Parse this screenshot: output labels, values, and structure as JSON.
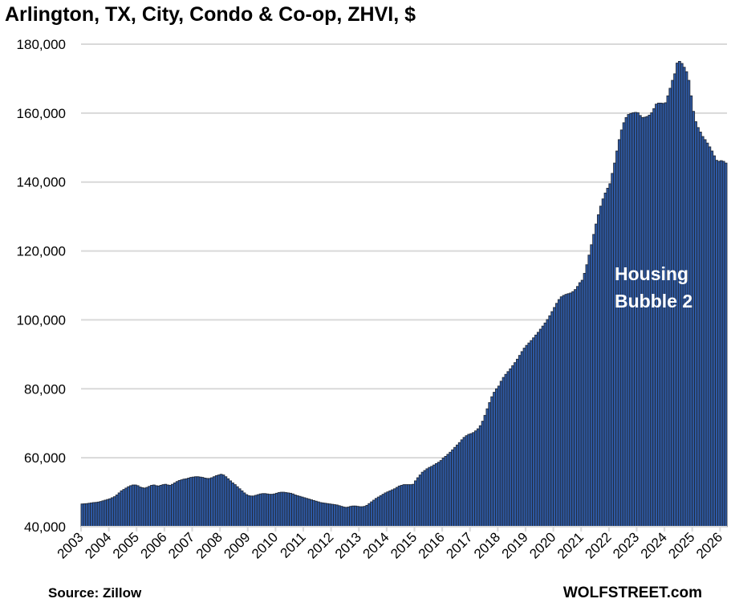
{
  "chart_data": {
    "type": "bar",
    "title": "Arlington, TX, City, Condo & Co-op, ZHVI, $",
    "xlabel": "",
    "ylabel": "",
    "start": "2003-01",
    "frequency": "monthly",
    "ylim": [
      40000,
      180000
    ],
    "yticks": [
      40000,
      60000,
      80000,
      100000,
      120000,
      140000,
      160000,
      180000
    ],
    "ytick_labels": [
      "40,000",
      "60,000",
      "80,000",
      "100,000",
      "120,000",
      "140,000",
      "160,000",
      "180,000"
    ],
    "xtick_labels": [
      "2003",
      "2004",
      "2005",
      "2006",
      "2007",
      "2008",
      "2009",
      "2010",
      "2011",
      "2012",
      "2013",
      "2014",
      "2015",
      "2016",
      "2017",
      "2018",
      "2019",
      "2020",
      "2021",
      "2022",
      "2023",
      "2024",
      "2025",
      "2026"
    ],
    "grid": "horizontal",
    "legend": "none",
    "annotation": [
      "Housing",
      "Bubble 2"
    ],
    "colors": {
      "bar_fill": "#2e5aa6",
      "bar_edge": "#222a38",
      "grid": "#d9d9d9",
      "annotation": "#ffffff"
    },
    "values": [
      46600,
      46650,
      46700,
      46800,
      46900,
      47000,
      47050,
      47150,
      47300,
      47500,
      47700,
      47900,
      48100,
      48400,
      48700,
      49200,
      49800,
      50400,
      50800,
      51200,
      51600,
      51900,
      52100,
      52100,
      51900,
      51500,
      51300,
      51200,
      51400,
      51700,
      52000,
      52100,
      51900,
      51800,
      52000,
      52200,
      52300,
      52100,
      52000,
      52300,
      52700,
      53100,
      53400,
      53600,
      53800,
      53900,
      54100,
      54300,
      54400,
      54500,
      54500,
      54400,
      54300,
      54100,
      54000,
      54000,
      54200,
      54500,
      54800,
      55000,
      55200,
      55000,
      54500,
      53900,
      53300,
      52700,
      52200,
      51600,
      51000,
      50400,
      49800,
      49300,
      49000,
      48900,
      48900,
      49100,
      49300,
      49500,
      49600,
      49600,
      49500,
      49400,
      49400,
      49500,
      49700,
      49900,
      50000,
      50000,
      49900,
      49800,
      49700,
      49500,
      49200,
      49000,
      48800,
      48600,
      48400,
      48200,
      48000,
      47800,
      47600,
      47400,
      47200,
      47000,
      46900,
      46800,
      46700,
      46600,
      46500,
      46400,
      46300,
      46100,
      45900,
      45700,
      45600,
      45700,
      45900,
      46000,
      46000,
      45900,
      45800,
      45800,
      45900,
      46200,
      46700,
      47200,
      47700,
      48200,
      48600,
      49000,
      49400,
      49800,
      50100,
      50400,
      50700,
      51000,
      51400,
      51800,
      52000,
      52200,
      52200,
      52200,
      52200,
      52300,
      53300,
      54200,
      55000,
      55800,
      56300,
      56800,
      57200,
      57500,
      57900,
      58300,
      58700,
      59200,
      59900,
      60400,
      61000,
      61600,
      62300,
      63000,
      63700,
      64400,
      65200,
      65900,
      66400,
      66800,
      67000,
      67300,
      67800,
      68400,
      69300,
      70600,
      72300,
      74200,
      76000,
      77700,
      79000,
      80000,
      80800,
      82200,
      83300,
      84200,
      85000,
      85800,
      86700,
      87600,
      88600,
      89700,
      90800,
      91800,
      92600,
      93300,
      94000,
      94800,
      95600,
      96400,
      97300,
      98200,
      99100,
      100100,
      101200,
      102400,
      103600,
      104800,
      105900,
      106700,
      107100,
      107400,
      107600,
      107800,
      108200,
      108800,
      109700,
      110800,
      111500,
      113500,
      116000,
      118800,
      121800,
      124800,
      127800,
      130500,
      133000,
      135100,
      136800,
      138200,
      139500,
      142500,
      145500,
      149000,
      152300,
      155100,
      157200,
      158700,
      159600,
      159900,
      160100,
      160200,
      160100,
      159300,
      158700,
      158800,
      159000,
      159400,
      160100,
      161300,
      162600,
      162900,
      162900,
      162800,
      163000,
      165000,
      167200,
      169500,
      171400,
      174500,
      175000,
      174400,
      173300,
      172000,
      169500,
      165000,
      160500,
      157500,
      155800,
      154500,
      153200,
      152300,
      151300,
      150200,
      149000,
      147600,
      146300,
      146000,
      146200,
      146000,
      145500
    ]
  },
  "footer": {
    "source": "Source: Zillow",
    "brand": "WOLFSTREET.com"
  }
}
